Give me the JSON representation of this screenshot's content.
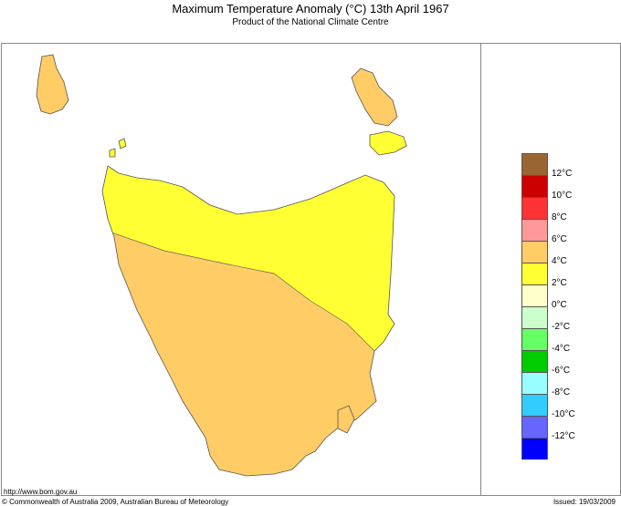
{
  "title": "Maximum Temperature Anomaly (°C)  13th April 1967",
  "subtitle": "Product of the National Climate Centre",
  "map": {
    "region": "Tasmania",
    "zones": [
      {
        "range": "2°C to 4°C",
        "color": "#ffff33",
        "area": "north-east"
      },
      {
        "range": "4°C to 6°C",
        "color": "#ffcc66",
        "area": "south-west and islands"
      }
    ]
  },
  "legend": {
    "colors": [
      "#996633",
      "#cc0000",
      "#ff3333",
      "#ff9999",
      "#ffcc66",
      "#ffff33",
      "#ffffcc",
      "#ccffcc",
      "#66ff66",
      "#00cc00",
      "#99ffff",
      "#33ccff",
      "#6666ff",
      "#0000ff"
    ],
    "labels": [
      "12°C",
      "10°C",
      "8°C",
      "6°C",
      "4°C",
      "2°C",
      "0°C",
      "-2°C",
      "-4°C",
      "-6°C",
      "-8°C",
      "-10°C",
      "-12°C"
    ]
  },
  "footer": {
    "url": "http://www.bom.gov.au",
    "copyright": "© Commonwealth of Australia 2009, Australian Bureau of Meteorology",
    "issued": "Issued: 19/03/2009"
  }
}
